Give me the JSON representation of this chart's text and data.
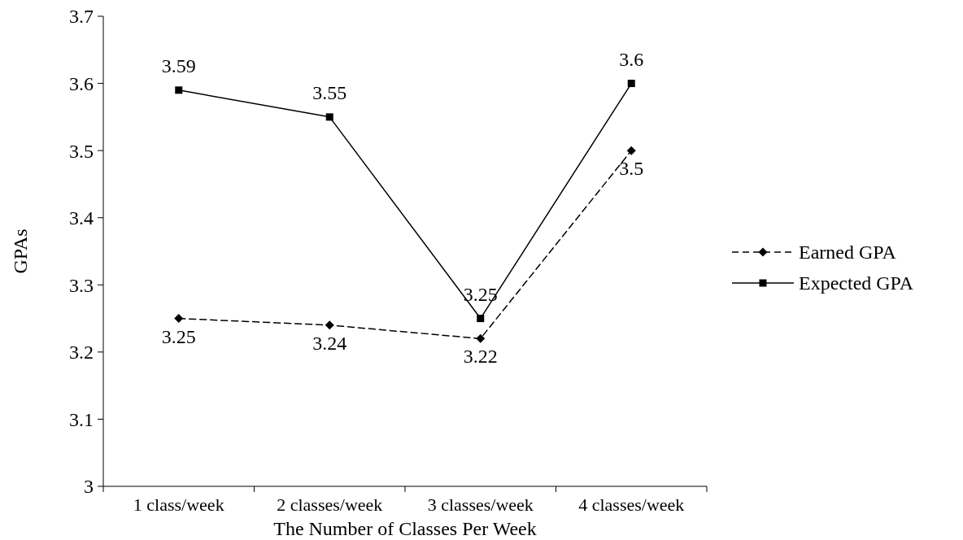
{
  "chart_data": {
    "type": "line",
    "xlabel": "The Number of Classes Per Week",
    "ylabel": "GPAs",
    "categories": [
      "1 class/week",
      "2 classes/week",
      "3 classes/week",
      "4 classes/week"
    ],
    "series": [
      {
        "name": "Earned GPA",
        "color": "#000000",
        "values": [
          3.25,
          3.24,
          3.22,
          3.5
        ],
        "line_style": "dashed",
        "marker": "diamond"
      },
      {
        "name": "Expected GPA",
        "color": "#000000",
        "values": [
          3.59,
          3.55,
          3.25,
          3.6
        ],
        "line_style": "solid",
        "marker": "square"
      }
    ],
    "ylim": [
      3,
      3.7
    ],
    "yticks": [
      3,
      3.1,
      3.2,
      3.3,
      3.4,
      3.5,
      3.6,
      3.7
    ],
    "grid": false,
    "legend": "right",
    "data_labels": true
  }
}
